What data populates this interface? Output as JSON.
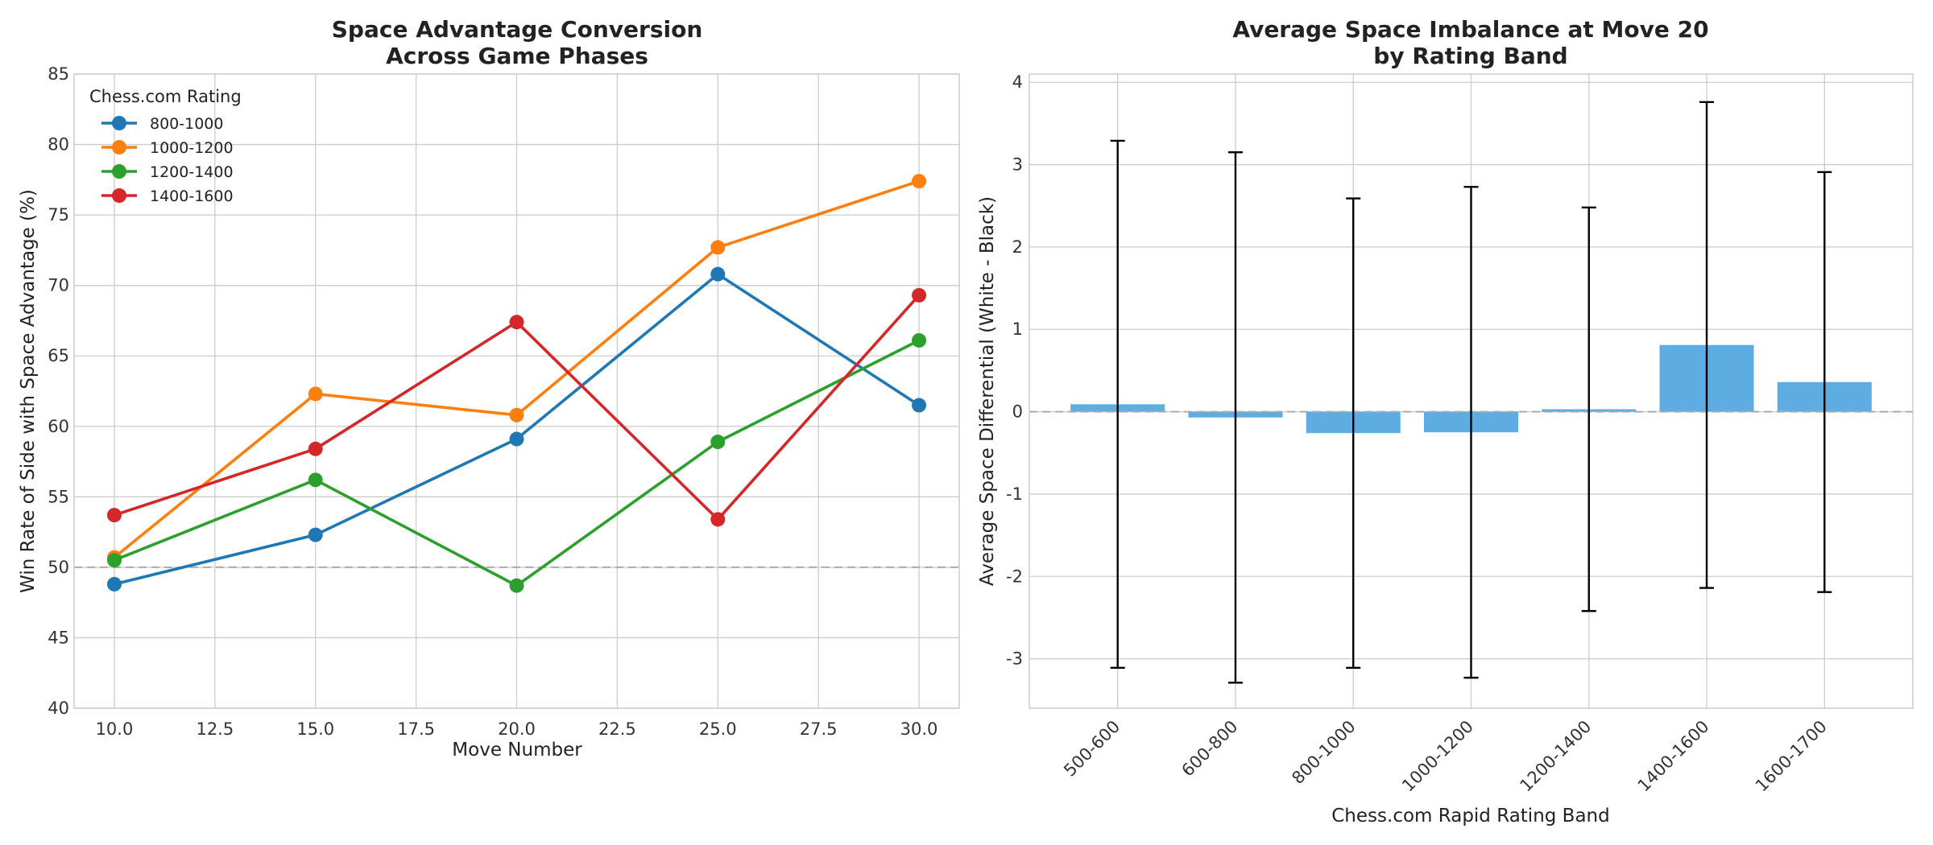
{
  "chart_data": [
    {
      "type": "line",
      "title_lines": [
        "Space Advantage Conversion",
        "Across Game Phases"
      ],
      "xlabel": "Move Number",
      "ylabel": "Win Rate of Side with Space Advantage (%)",
      "xlim": [
        9,
        31
      ],
      "ylim": [
        40,
        85
      ],
      "xticks": [
        10.0,
        12.5,
        15.0,
        17.5,
        20.0,
        22.5,
        25.0,
        27.5,
        30.0
      ],
      "xtick_labels": [
        "10.0",
        "12.5",
        "15.0",
        "17.5",
        "20.0",
        "22.5",
        "25.0",
        "27.5",
        "30.0"
      ],
      "yticks": [
        40,
        45,
        50,
        55,
        60,
        65,
        70,
        75,
        80,
        85
      ],
      "ytick_labels": [
        "40",
        "45",
        "50",
        "55",
        "60",
        "65",
        "70",
        "75",
        "80",
        "85"
      ],
      "reference_line_y": 50,
      "grid": true,
      "legend": {
        "title": "Chess.com Rating",
        "placement": "top-left"
      },
      "x": [
        10,
        15,
        20,
        25,
        30
      ],
      "series": [
        {
          "name": "800-1000",
          "color": "#1f77b4",
          "values": [
            48.8,
            52.3,
            59.1,
            70.8,
            61.5
          ]
        },
        {
          "name": "1000-1200",
          "color": "#ff7f0e",
          "values": [
            50.7,
            62.3,
            60.8,
            72.7,
            77.4
          ]
        },
        {
          "name": "1200-1400",
          "color": "#2ca02c",
          "values": [
            50.5,
            56.2,
            48.7,
            58.9,
            66.1
          ]
        },
        {
          "name": "1400-1600",
          "color": "#d62728",
          "values": [
            53.7,
            58.4,
            67.4,
            53.4,
            69.3
          ]
        }
      ]
    },
    {
      "type": "bar",
      "title_lines": [
        "Average Space Imbalance at Move 20",
        "by Rating Band"
      ],
      "xlabel": "Chess.com Rapid Rating Band",
      "ylabel": "Average Space Differential (White - Black)",
      "ylim": [
        -3.6,
        4.1
      ],
      "yticks": [
        -3,
        -2,
        -1,
        0,
        1,
        2,
        3,
        4
      ],
      "ytick_labels": [
        "-3",
        "-2",
        "-1",
        "0",
        "1",
        "2",
        "3",
        "4"
      ],
      "reference_line_y": 0,
      "grid": true,
      "bar_color": "#5dade2",
      "categories": [
        "500-600",
        "600-800",
        "800-1000",
        "1000-1200",
        "1200-1400",
        "1400-1600",
        "1600-1700"
      ],
      "values": [
        0.09,
        -0.07,
        -0.26,
        -0.25,
        0.03,
        0.81,
        0.36
      ],
      "error": [
        3.2,
        3.22,
        2.85,
        2.98,
        2.45,
        2.95,
        2.55
      ]
    }
  ]
}
